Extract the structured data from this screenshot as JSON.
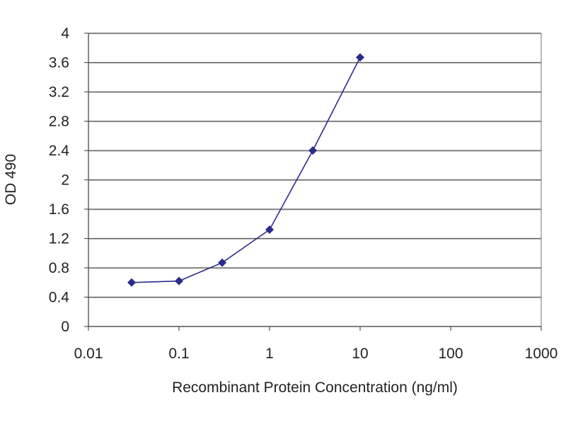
{
  "chart_data": {
    "type": "line",
    "xlabel": "Recombinant Protein Concentration (ng/ml)",
    "ylabel": "OD 490",
    "xscale": "log",
    "xlim": [
      0.01,
      1000
    ],
    "ylim": [
      0,
      4
    ],
    "x_ticks": [
      0.01,
      0.1,
      1,
      10,
      100,
      1000
    ],
    "x_tick_labels": [
      "0.01",
      "0.1",
      "1",
      "10",
      "100",
      "1000"
    ],
    "y_ticks": [
      0,
      0.4,
      0.8,
      1.2,
      1.6,
      2,
      2.4,
      2.8,
      3.2,
      3.6,
      4
    ],
    "y_tick_labels": [
      "0",
      "0.4",
      "0.8",
      "1.2",
      "1.6",
      "2",
      "2.4",
      "2.8",
      "3.2",
      "3.6",
      "4"
    ],
    "grid": "horizontal",
    "legend": "none",
    "series": [
      {
        "x": [
          0.03,
          0.1,
          0.3,
          1,
          3,
          10
        ],
        "y": [
          0.6,
          0.62,
          0.87,
          1.32,
          2.4,
          3.67
        ],
        "color": "#2b2b8c"
      }
    ]
  }
}
